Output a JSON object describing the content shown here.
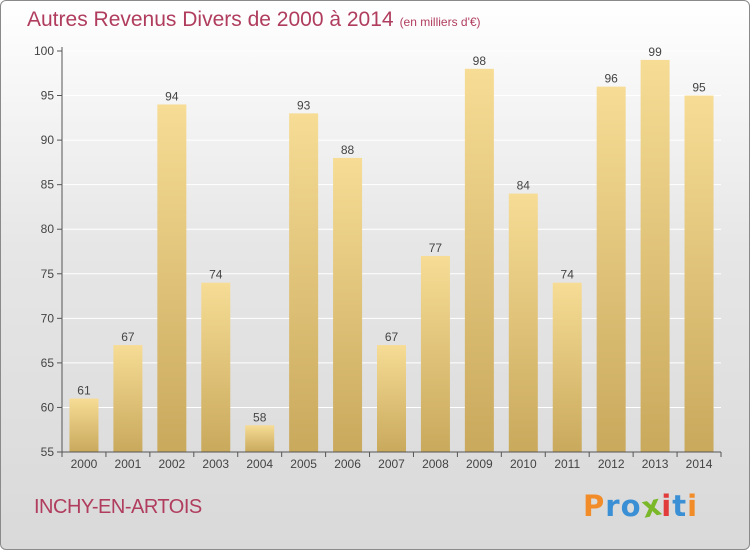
{
  "title": "Autres Revenus Divers de 2000 à 2014",
  "subtitle": "(en milliers d'€)",
  "commune": "INCHY-EN-ARTOIS",
  "logo": {
    "letters": [
      "P",
      "r",
      "o",
      "x",
      "i",
      "t",
      "i"
    ],
    "colors": [
      "#f28c28",
      "#3b8fd4",
      "#3b8fd4",
      "#7ab829",
      "#e23b3b",
      "#3b8fd4",
      "#f28c28"
    ]
  },
  "colors": {
    "bar_light": "#f6dc95",
    "bar_dark": "#c9a95c",
    "grid": "#ffffff",
    "text": "#444444",
    "accent": "#b03d5e"
  },
  "chart_data": {
    "type": "bar",
    "title": "Autres Revenus Divers de 2000 à 2014",
    "subtitle": "(en milliers d'€)",
    "categories": [
      "2000",
      "2001",
      "2002",
      "2003",
      "2004",
      "2005",
      "2006",
      "2007",
      "2008",
      "2009",
      "2010",
      "2011",
      "2012",
      "2013",
      "2014"
    ],
    "values": [
      61,
      67,
      94,
      74,
      58,
      93,
      88,
      67,
      77,
      98,
      84,
      74,
      96,
      99,
      95
    ],
    "ylim": [
      55,
      100
    ],
    "yticks": [
      55,
      60,
      65,
      70,
      75,
      80,
      85,
      90,
      95,
      100
    ],
    "grid": true,
    "data_labels": true,
    "xlabel": "",
    "ylabel": ""
  }
}
